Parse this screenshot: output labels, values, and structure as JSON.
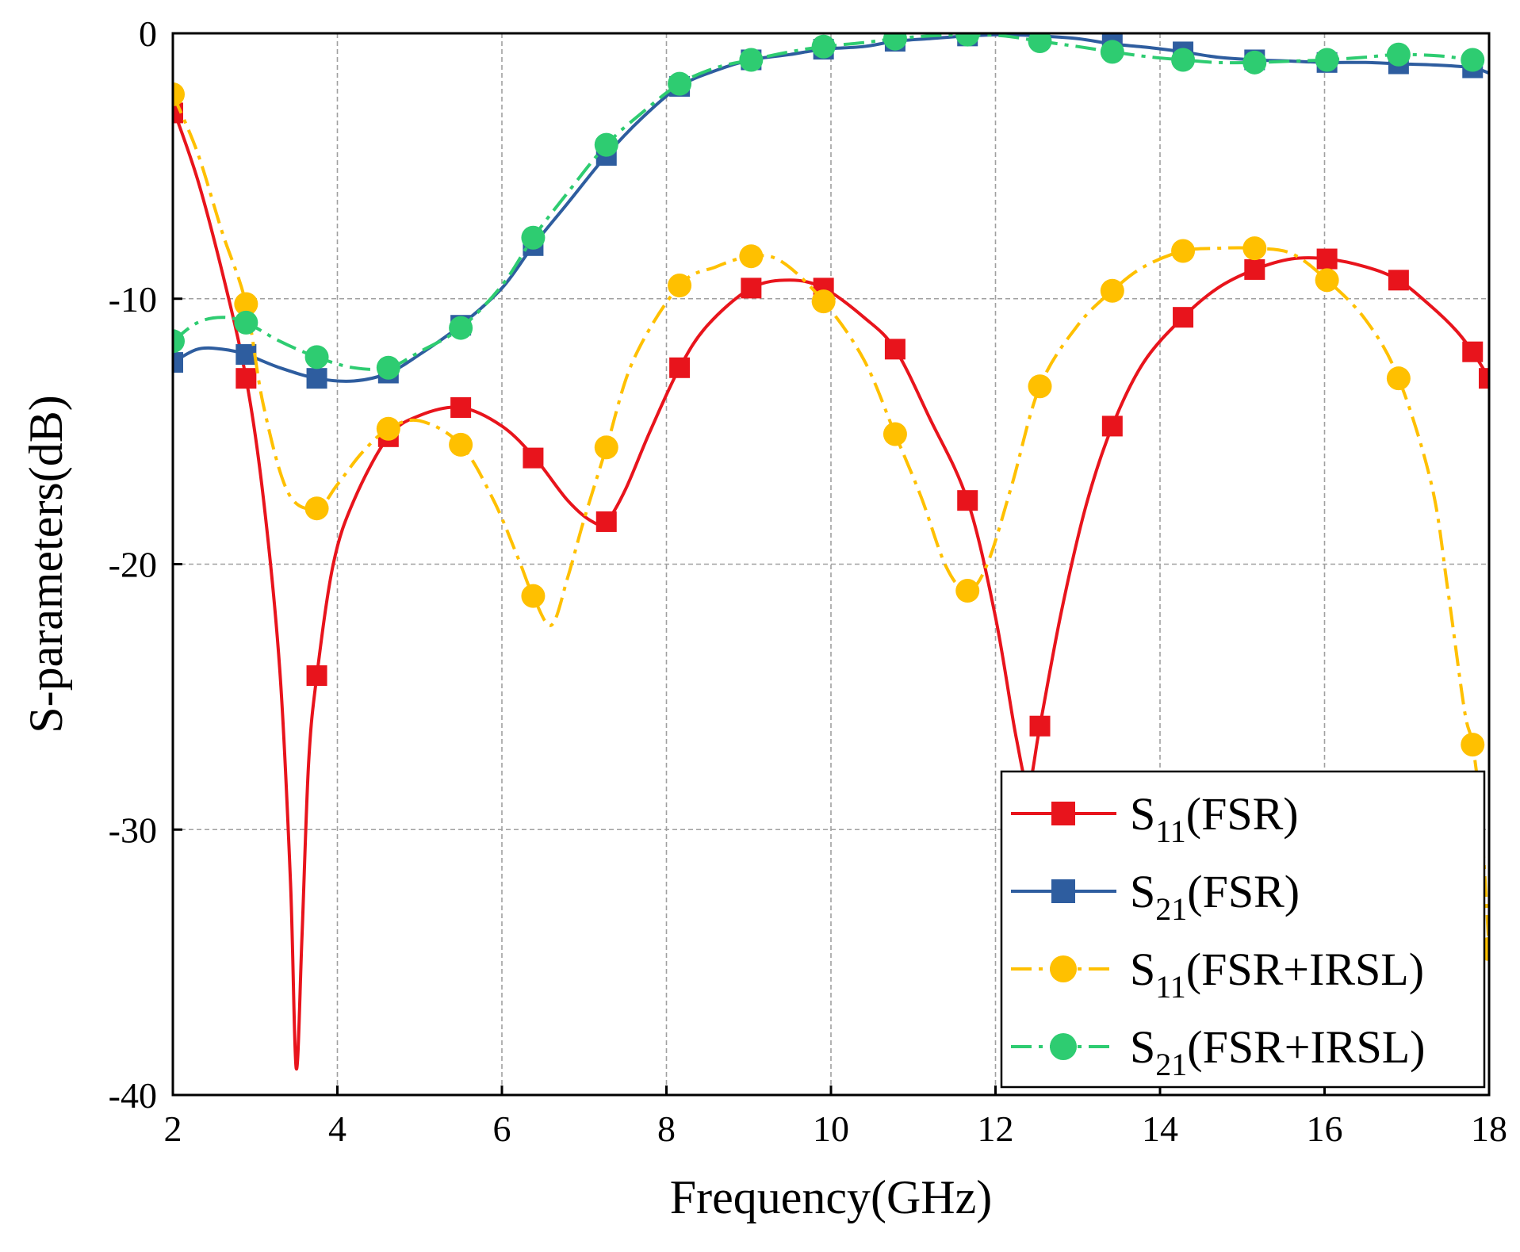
{
  "chart_data": {
    "type": "line",
    "title": "",
    "xlabel": "Frequency(GHz)",
    "ylabel": "S-parameters(dB)",
    "xlim": [
      2,
      18
    ],
    "ylim": [
      -40,
      0
    ],
    "xticks": [
      2,
      4,
      6,
      8,
      10,
      12,
      14,
      16,
      18
    ],
    "yticks": [
      0,
      -10,
      -20,
      -30,
      -40
    ],
    "xtick_labels": [
      "2",
      "4",
      "6",
      "8",
      "10",
      "12",
      "14",
      "16",
      "18"
    ],
    "ytick_labels": [
      "0",
      "-10",
      "-20",
      "-30",
      "-40"
    ],
    "grid": true,
    "legend_position": "bottom-right",
    "series": [
      {
        "name": "S11(FSR)",
        "legend": {
          "main": "S",
          "sub": "11",
          "rest": "(FSR)"
        },
        "color": "#e8141c",
        "line_style": "solid",
        "marker": "square",
        "curve": [
          [
            2.0,
            -2.8
          ],
          [
            2.3,
            -5.5
          ],
          [
            2.6,
            -9.0
          ],
          [
            2.89,
            -13.0
          ],
          [
            3.1,
            -17.5
          ],
          [
            3.3,
            -24.0
          ],
          [
            3.43,
            -32.0
          ],
          [
            3.5,
            -39.0
          ],
          [
            3.57,
            -34.0
          ],
          [
            3.65,
            -27.5
          ],
          [
            3.75,
            -24.2
          ],
          [
            3.95,
            -20.0
          ],
          [
            4.2,
            -17.6
          ],
          [
            4.62,
            -15.2
          ],
          [
            5.0,
            -14.4
          ],
          [
            5.5,
            -14.1
          ],
          [
            6.0,
            -14.8
          ],
          [
            6.4,
            -16.0
          ],
          [
            6.8,
            -17.6
          ],
          [
            7.1,
            -18.4
          ],
          [
            7.27,
            -18.4
          ],
          [
            7.5,
            -17.2
          ],
          [
            7.8,
            -15.0
          ],
          [
            8.16,
            -12.6
          ],
          [
            8.5,
            -11.0
          ],
          [
            9.03,
            -9.6
          ],
          [
            9.5,
            -9.3
          ],
          [
            9.91,
            -9.6
          ],
          [
            10.4,
            -10.7
          ],
          [
            10.78,
            -11.9
          ],
          [
            11.2,
            -14.5
          ],
          [
            11.66,
            -17.6
          ],
          [
            12.0,
            -22.0
          ],
          [
            12.25,
            -26.5
          ],
          [
            12.4,
            -28.3
          ],
          [
            12.54,
            -26.1
          ],
          [
            12.8,
            -21.8
          ],
          [
            13.1,
            -17.8
          ],
          [
            13.42,
            -14.8
          ],
          [
            13.8,
            -12.4
          ],
          [
            14.28,
            -10.7
          ],
          [
            14.7,
            -9.6
          ],
          [
            15.15,
            -8.9
          ],
          [
            15.6,
            -8.5
          ],
          [
            16.03,
            -8.5
          ],
          [
            16.5,
            -8.8
          ],
          [
            16.9,
            -9.3
          ],
          [
            17.3,
            -10.3
          ],
          [
            17.6,
            -11.2
          ],
          [
            17.8,
            -12.0
          ],
          [
            18.0,
            -13.0
          ]
        ],
        "markers": [
          [
            2.0,
            -3.0
          ],
          [
            2.89,
            -13.0
          ],
          [
            3.75,
            -24.2
          ],
          [
            4.62,
            -15.2
          ],
          [
            5.5,
            -14.1
          ],
          [
            6.38,
            -16.0
          ],
          [
            7.27,
            -18.4
          ],
          [
            8.16,
            -12.6
          ],
          [
            9.03,
            -9.6
          ],
          [
            9.91,
            -9.6
          ],
          [
            10.78,
            -11.9
          ],
          [
            11.66,
            -17.6
          ],
          [
            12.54,
            -26.1
          ],
          [
            13.42,
            -14.8
          ],
          [
            14.28,
            -10.7
          ],
          [
            15.15,
            -8.9
          ],
          [
            16.03,
            -8.5
          ],
          [
            16.9,
            -9.3
          ],
          [
            17.8,
            -12.0
          ],
          [
            18.0,
            -13.0
          ]
        ]
      },
      {
        "name": "S21(FSR)",
        "legend": {
          "main": "S",
          "sub": "21",
          "rest": "(FSR)"
        },
        "color": "#2e5d9f",
        "line_style": "solid",
        "marker": "square",
        "curve": [
          [
            2.0,
            -12.4
          ],
          [
            2.3,
            -11.9
          ],
          [
            2.6,
            -11.9
          ],
          [
            2.89,
            -12.1
          ],
          [
            3.3,
            -12.6
          ],
          [
            3.75,
            -13.0
          ],
          [
            4.2,
            -13.1
          ],
          [
            4.62,
            -12.8
          ],
          [
            5.0,
            -12.1
          ],
          [
            5.5,
            -11.0
          ],
          [
            6.0,
            -9.6
          ],
          [
            6.38,
            -8.0
          ],
          [
            6.8,
            -6.4
          ],
          [
            7.27,
            -4.6
          ],
          [
            7.7,
            -3.2
          ],
          [
            8.16,
            -2.0
          ],
          [
            8.6,
            -1.4
          ],
          [
            9.03,
            -1.0
          ],
          [
            9.5,
            -0.8
          ],
          [
            9.91,
            -0.6
          ],
          [
            10.4,
            -0.5
          ],
          [
            10.78,
            -0.3
          ],
          [
            11.2,
            -0.2
          ],
          [
            11.66,
            -0.1
          ],
          [
            12.1,
            -0.05
          ],
          [
            12.54,
            -0.1
          ],
          [
            13.0,
            -0.2
          ],
          [
            13.42,
            -0.4
          ],
          [
            13.9,
            -0.55
          ],
          [
            14.28,
            -0.7
          ],
          [
            14.7,
            -0.9
          ],
          [
            15.15,
            -1.0
          ],
          [
            15.6,
            -1.05
          ],
          [
            16.03,
            -1.1
          ],
          [
            16.5,
            -1.1
          ],
          [
            16.9,
            -1.15
          ],
          [
            17.4,
            -1.2
          ],
          [
            17.8,
            -1.3
          ],
          [
            18.0,
            -1.5
          ]
        ],
        "markers": [
          [
            2.0,
            -12.4
          ],
          [
            2.89,
            -12.1
          ],
          [
            3.75,
            -13.0
          ],
          [
            4.62,
            -12.8
          ],
          [
            5.5,
            -11.0
          ],
          [
            6.38,
            -8.0
          ],
          [
            7.27,
            -4.6
          ],
          [
            8.16,
            -2.0
          ],
          [
            9.03,
            -1.0
          ],
          [
            9.91,
            -0.6
          ],
          [
            10.78,
            -0.3
          ],
          [
            11.66,
            -0.1
          ],
          [
            12.54,
            -0.1
          ],
          [
            13.42,
            -0.4
          ],
          [
            14.28,
            -0.7
          ],
          [
            15.15,
            -1.0
          ],
          [
            16.03,
            -1.1
          ],
          [
            16.9,
            -1.15
          ],
          [
            17.8,
            -1.3
          ]
        ]
      },
      {
        "name": "S11(FSR+IRSL)",
        "legend": {
          "main": "S",
          "sub": "11",
          "rest": "(FSR+IRSL)"
        },
        "color": "#ffc000",
        "line_style": "dashdot",
        "marker": "circle",
        "curve": [
          [
            2.0,
            -2.3
          ],
          [
            2.3,
            -4.5
          ],
          [
            2.6,
            -7.5
          ],
          [
            2.89,
            -10.2
          ],
          [
            3.1,
            -14.0
          ],
          [
            3.4,
            -17.3
          ],
          [
            3.75,
            -17.9
          ],
          [
            4.0,
            -17.0
          ],
          [
            4.3,
            -15.8
          ],
          [
            4.62,
            -14.9
          ],
          [
            5.0,
            -14.6
          ],
          [
            5.5,
            -15.5
          ],
          [
            5.9,
            -17.6
          ],
          [
            6.2,
            -19.8
          ],
          [
            6.38,
            -21.2
          ],
          [
            6.6,
            -22.3
          ],
          [
            6.8,
            -20.5
          ],
          [
            7.0,
            -18.3
          ],
          [
            7.27,
            -15.6
          ],
          [
            7.6,
            -12.3
          ],
          [
            8.16,
            -9.5
          ],
          [
            8.6,
            -8.8
          ],
          [
            9.03,
            -8.4
          ],
          [
            9.4,
            -8.6
          ],
          [
            9.91,
            -10.1
          ],
          [
            10.4,
            -12.3
          ],
          [
            10.78,
            -15.1
          ],
          [
            11.1,
            -17.5
          ],
          [
            11.4,
            -20.1
          ],
          [
            11.66,
            -21.0
          ],
          [
            11.9,
            -20.0
          ],
          [
            12.2,
            -17.0
          ],
          [
            12.54,
            -13.3
          ],
          [
            13.0,
            -11.0
          ],
          [
            13.42,
            -9.7
          ],
          [
            13.8,
            -8.8
          ],
          [
            14.28,
            -8.2
          ],
          [
            14.7,
            -8.1
          ],
          [
            15.15,
            -8.1
          ],
          [
            15.6,
            -8.3
          ],
          [
            16.03,
            -9.3
          ],
          [
            16.5,
            -10.8
          ],
          [
            16.9,
            -13.0
          ],
          [
            17.3,
            -17.0
          ],
          [
            17.5,
            -21.0
          ],
          [
            17.7,
            -25.5
          ],
          [
            17.8,
            -26.8
          ],
          [
            17.9,
            -29.5
          ],
          [
            18.0,
            -34.5
          ]
        ],
        "markers": [
          [
            2.0,
            -2.3
          ],
          [
            2.89,
            -10.2
          ],
          [
            3.75,
            -17.9
          ],
          [
            4.62,
            -14.9
          ],
          [
            5.5,
            -15.5
          ],
          [
            6.38,
            -21.2
          ],
          [
            7.27,
            -15.6
          ],
          [
            8.16,
            -9.5
          ],
          [
            9.03,
            -8.4
          ],
          [
            9.91,
            -10.1
          ],
          [
            10.78,
            -15.1
          ],
          [
            11.66,
            -21.0
          ],
          [
            12.54,
            -13.3
          ],
          [
            13.42,
            -9.7
          ],
          [
            14.28,
            -8.2
          ],
          [
            15.15,
            -8.1
          ],
          [
            16.03,
            -9.3
          ],
          [
            16.9,
            -13.0
          ],
          [
            17.8,
            -26.8
          ],
          [
            18.0,
            -34.5
          ]
        ]
      },
      {
        "name": "S21(FSR+IRSL)",
        "legend": {
          "main": "S",
          "sub": "21",
          "rest": "(FSR+IRSL)"
        },
        "color": "#2ecc71",
        "line_style": "dashdot",
        "marker": "circle",
        "curve": [
          [
            2.0,
            -11.6
          ],
          [
            2.3,
            -10.9
          ],
          [
            2.6,
            -10.7
          ],
          [
            2.89,
            -10.9
          ],
          [
            3.3,
            -11.6
          ],
          [
            3.75,
            -12.2
          ],
          [
            4.2,
            -12.6
          ],
          [
            4.62,
            -12.6
          ],
          [
            5.0,
            -12.0
          ],
          [
            5.5,
            -11.1
          ],
          [
            6.0,
            -9.5
          ],
          [
            6.38,
            -7.7
          ],
          [
            6.8,
            -6.0
          ],
          [
            7.27,
            -4.2
          ],
          [
            7.7,
            -3.0
          ],
          [
            8.16,
            -1.9
          ],
          [
            8.6,
            -1.3
          ],
          [
            9.03,
            -1.0
          ],
          [
            9.5,
            -0.7
          ],
          [
            9.91,
            -0.5
          ],
          [
            10.4,
            -0.35
          ],
          [
            10.78,
            -0.2
          ],
          [
            11.2,
            -0.1
          ],
          [
            11.66,
            -0.05
          ],
          [
            12.1,
            -0.1
          ],
          [
            12.54,
            -0.3
          ],
          [
            13.0,
            -0.5
          ],
          [
            13.42,
            -0.7
          ],
          [
            13.9,
            -0.9
          ],
          [
            14.28,
            -1.0
          ],
          [
            14.7,
            -1.1
          ],
          [
            15.15,
            -1.1
          ],
          [
            15.6,
            -1.05
          ],
          [
            16.03,
            -1.0
          ],
          [
            16.5,
            -0.9
          ],
          [
            16.9,
            -0.8
          ],
          [
            17.4,
            -0.85
          ],
          [
            17.8,
            -1.0
          ],
          [
            18.0,
            -1.0
          ]
        ],
        "markers": [
          [
            2.0,
            -11.6
          ],
          [
            2.89,
            -10.9
          ],
          [
            3.75,
            -12.2
          ],
          [
            4.62,
            -12.6
          ],
          [
            5.5,
            -11.1
          ],
          [
            6.38,
            -7.7
          ],
          [
            7.27,
            -4.2
          ],
          [
            8.16,
            -1.9
          ],
          [
            9.03,
            -1.0
          ],
          [
            9.91,
            -0.5
          ],
          [
            10.78,
            -0.2
          ],
          [
            11.66,
            -0.05
          ],
          [
            12.54,
            -0.3
          ],
          [
            13.42,
            -0.7
          ],
          [
            14.28,
            -1.0
          ],
          [
            15.15,
            -1.1
          ],
          [
            16.03,
            -1.0
          ],
          [
            16.9,
            -0.8
          ],
          [
            17.8,
            -1.0
          ]
        ]
      }
    ]
  }
}
